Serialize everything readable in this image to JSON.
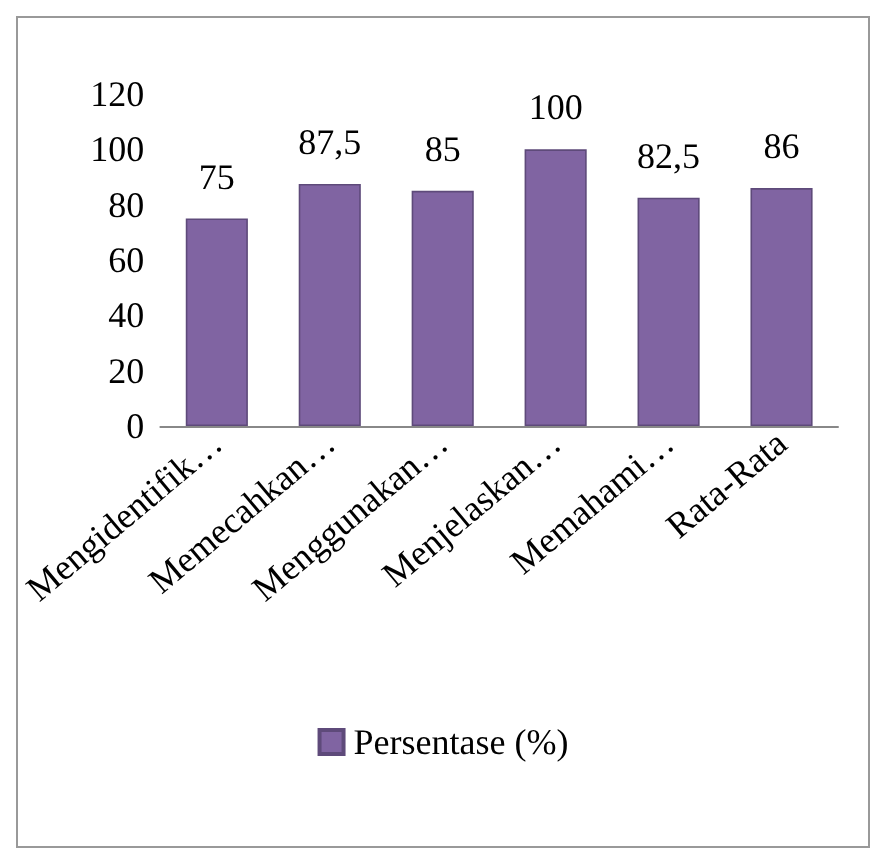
{
  "chart_data": {
    "type": "bar",
    "categories": [
      "Mengidentifik…",
      "Memecahkan…",
      "Menggunakan…",
      "Menjelaskan…",
      "Memahami…",
      "Rata-Rata"
    ],
    "series": [
      {
        "name": "Persentase (%)",
        "color": "#8064a2",
        "values": [
          75,
          87.5,
          85,
          100,
          82.5,
          86
        ],
        "value_labels": [
          "75",
          "87,5",
          "85",
          "100",
          "82,5",
          "86"
        ]
      }
    ],
    "ylim": [
      0,
      120
    ],
    "yticks": [
      0,
      20,
      40,
      60,
      80,
      100,
      120
    ],
    "grid": false,
    "legend": "bottom"
  }
}
